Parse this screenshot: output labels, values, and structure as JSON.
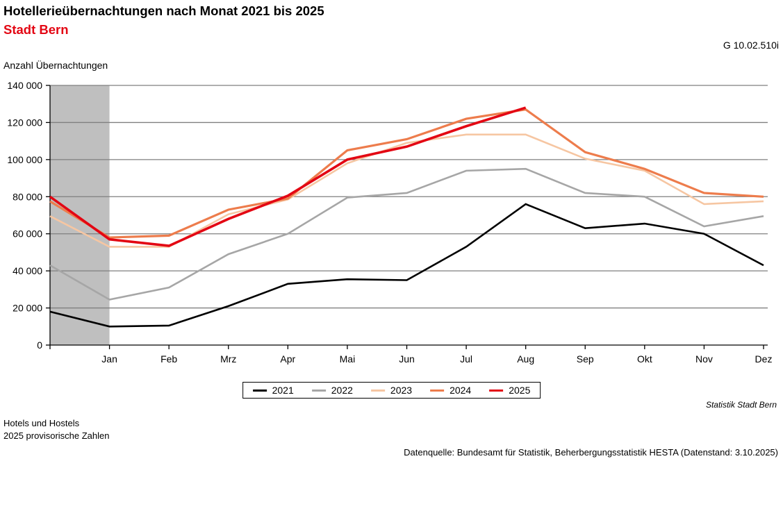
{
  "header": {
    "title": "Hotellerieübernachtungen nach Monat 2021 bis 2025",
    "subtitle": "Stadt Bern",
    "graph_code": "G 10.02.510i",
    "y_axis_caption": "Anzahl Übernachtungen"
  },
  "chart_data": {
    "type": "line",
    "title": "Hotellerieübernachtungen nach Monat 2021 bis 2025",
    "subtitle": "Stadt Bern",
    "ylabel": "Anzahl Übernachtungen",
    "xlabel": "",
    "ylim": [
      0,
      140000
    ],
    "y_ticks": [
      0,
      20000,
      40000,
      60000,
      80000,
      100000,
      120000,
      140000
    ],
    "y_tick_labels": [
      "0",
      "20 000",
      "40 000",
      "60 000",
      "80 000",
      "100 000",
      "120 000",
      "140 000"
    ],
    "x_tick_labels": [
      "Jan",
      "Feb",
      "Mrz",
      "Apr",
      "Mai",
      "Jun",
      "Jul",
      "Aug",
      "Sep",
      "Okt",
      "Nov",
      "Dez"
    ],
    "first_point_note": "Each line starts on the y-axis with the previous-year December value; gray band spans axis-to-Jan",
    "grid": "horizontal",
    "legend_position": "bottom-center",
    "highlight_band_color": "#bfbfbf",
    "grid_color": "#7f7f7f",
    "axis_color": "#000000",
    "series": [
      {
        "name": "2021",
        "color": "#000000",
        "width": 2.6,
        "values": [
          18000,
          10000,
          10500,
          21000,
          33000,
          35500,
          35000,
          53000,
          76000,
          63000,
          65500,
          60000,
          43000
        ]
      },
      {
        "name": "2022",
        "color": "#a6a6a6",
        "width": 2.6,
        "values": [
          43000,
          24500,
          31000,
          49000,
          60000,
          79500,
          82000,
          94000,
          95000,
          82000,
          80000,
          64000,
          69500
        ]
      },
      {
        "name": "2023",
        "color": "#f6c6a2",
        "width": 2.6,
        "values": [
          69500,
          53000,
          53000,
          70500,
          78500,
          98000,
          109000,
          113500,
          113500,
          100500,
          94000,
          76000,
          77500
        ]
      },
      {
        "name": "2024",
        "color": "#ed7c4c",
        "width": 3.2,
        "values": [
          77500,
          58000,
          59000,
          73000,
          79000,
          105000,
          111000,
          122000,
          127000,
          104000,
          95000,
          82000,
          80000
        ]
      },
      {
        "name": "2025",
        "color": "#e30613",
        "width": 3.6,
        "values": [
          80000,
          57000,
          53500,
          68000,
          80500,
          100000,
          107000,
          118000,
          128000
        ]
      }
    ]
  },
  "footer": {
    "attribution": "Statistik Stadt Bern",
    "note_line1": "Hotels und Hostels",
    "note_line2": "2025 provisorische Zahlen",
    "source": "Datenquelle: Bundesamt für Statistik, Beherbergungsstatistik HESTA (Datenstand: 3.10.2025)"
  }
}
